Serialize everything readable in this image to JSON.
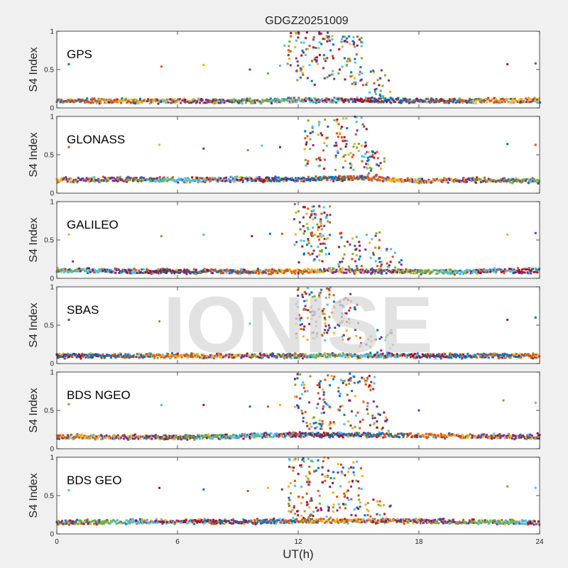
{
  "chart_data": {
    "type": "scatter",
    "title": "GDGZ20251009",
    "xlabel": "UT(h)",
    "ylabel": "S4 Index",
    "xlim": [
      0,
      24
    ],
    "ylim": [
      0,
      1
    ],
    "xticks": [
      "0",
      "6",
      "12",
      "18",
      "24"
    ],
    "yticks": [
      "0",
      "0.5",
      "1"
    ],
    "watermark": "IONISE",
    "series_colors": [
      "#0072BD",
      "#D95319",
      "#EDB120",
      "#7E2F8E",
      "#77AC30",
      "#4DBEEE",
      "#A2142F"
    ],
    "panels": [
      {
        "name": "GPS",
        "baseline": [
          [
            0,
            0.09
          ],
          [
            6,
            0.09
          ],
          [
            10,
            0.09
          ],
          [
            12,
            0.1
          ],
          [
            16,
            0.1
          ],
          [
            20,
            0.09
          ],
          [
            24,
            0.1
          ]
        ],
        "bursts": [
          {
            "x0": 11.3,
            "x1": 13.8,
            "ymin": 0.3,
            "ymax": 1.0,
            "n": 95
          },
          {
            "x0": 14.0,
            "x1": 15.2,
            "ymin": 0.3,
            "ymax": 0.95,
            "n": 55
          },
          {
            "x0": 15.2,
            "x1": 16.6,
            "ymin": 0.15,
            "ymax": 0.5,
            "n": 25
          }
        ],
        "outliers": [
          [
            0.6,
            0.57
          ],
          [
            5.2,
            0.54
          ],
          [
            7.3,
            0.56
          ],
          [
            9.6,
            0.5
          ],
          [
            10.5,
            0.45
          ],
          [
            11.1,
            0.55
          ],
          [
            22.4,
            0.57
          ],
          [
            23.8,
            0.58
          ]
        ]
      },
      {
        "name": "GLONASS",
        "baseline": [
          [
            0,
            0.17
          ],
          [
            3,
            0.18
          ],
          [
            6,
            0.17
          ],
          [
            9,
            0.18
          ],
          [
            12,
            0.18
          ],
          [
            15,
            0.2
          ],
          [
            18,
            0.16
          ],
          [
            21,
            0.17
          ],
          [
            24,
            0.16
          ]
        ],
        "bursts": [
          {
            "x0": 12.3,
            "x1": 13.5,
            "ymin": 0.3,
            "ymax": 1.0,
            "n": 40
          },
          {
            "x0": 13.8,
            "x1": 15.4,
            "ymin": 0.3,
            "ymax": 1.0,
            "n": 70
          },
          {
            "x0": 15.4,
            "x1": 16.3,
            "ymin": 0.2,
            "ymax": 0.55,
            "n": 30
          }
        ],
        "outliers": [
          [
            0.6,
            0.6
          ],
          [
            5.1,
            0.63
          ],
          [
            7.3,
            0.58
          ],
          [
            9.5,
            0.56
          ],
          [
            10.2,
            0.62
          ],
          [
            11.1,
            0.6
          ],
          [
            22.4,
            0.64
          ],
          [
            23.8,
            0.63
          ]
        ]
      },
      {
        "name": "GALILEO",
        "baseline": [
          [
            0,
            0.1
          ],
          [
            6,
            0.09
          ],
          [
            11,
            0.09
          ],
          [
            13,
            0.1
          ],
          [
            17,
            0.09
          ],
          [
            20,
            0.08
          ],
          [
            22,
            0.1
          ],
          [
            24,
            0.1
          ]
        ],
        "bursts": [
          {
            "x0": 11.8,
            "x1": 13.2,
            "ymin": 0.2,
            "ymax": 0.98,
            "n": 60
          },
          {
            "x0": 12.6,
            "x1": 13.6,
            "ymin": 0.3,
            "ymax": 0.95,
            "n": 45
          },
          {
            "x0": 14.0,
            "x1": 16.2,
            "ymin": 0.15,
            "ymax": 0.6,
            "n": 50
          },
          {
            "x0": 16.0,
            "x1": 17.2,
            "ymin": 0.08,
            "ymax": 0.4,
            "n": 20
          }
        ],
        "outliers": [
          [
            0.6,
            0.57
          ],
          [
            0.8,
            0.22
          ],
          [
            5.2,
            0.55
          ],
          [
            7.3,
            0.57
          ],
          [
            9.7,
            0.55
          ],
          [
            10.6,
            0.58
          ],
          [
            11.2,
            0.58
          ],
          [
            22.4,
            0.57
          ],
          [
            23.8,
            0.59
          ]
        ]
      },
      {
        "name": "SBAS",
        "baseline": [
          [
            0,
            0.1
          ],
          [
            6,
            0.1
          ],
          [
            12,
            0.1
          ],
          [
            16,
            0.1
          ],
          [
            20,
            0.1
          ],
          [
            24,
            0.1
          ]
        ],
        "bursts": [
          {
            "x0": 11.9,
            "x1": 13.6,
            "ymin": 0.3,
            "ymax": 1.0,
            "n": 90
          },
          {
            "x0": 13.6,
            "x1": 15.0,
            "ymin": 0.3,
            "ymax": 0.95,
            "n": 45
          },
          {
            "x0": 15.0,
            "x1": 16.8,
            "ymin": 0.1,
            "ymax": 0.45,
            "n": 30
          }
        ],
        "outliers": [
          [
            0.6,
            0.57
          ],
          [
            5.1,
            0.55
          ],
          [
            9.6,
            0.52
          ],
          [
            22.4,
            0.57
          ],
          [
            23.8,
            0.6
          ]
        ]
      },
      {
        "name": "BDS NGEO",
        "baseline": [
          [
            0,
            0.16
          ],
          [
            4,
            0.15
          ],
          [
            7,
            0.15
          ],
          [
            10,
            0.17
          ],
          [
            12,
            0.18
          ],
          [
            16,
            0.18
          ],
          [
            19,
            0.17
          ],
          [
            22,
            0.16
          ],
          [
            24,
            0.15
          ]
        ],
        "bursts": [
          {
            "x0": 11.8,
            "x1": 13.8,
            "ymin": 0.25,
            "ymax": 0.98,
            "n": 80
          },
          {
            "x0": 14.0,
            "x1": 15.8,
            "ymin": 0.25,
            "ymax": 0.98,
            "n": 70
          },
          {
            "x0": 15.8,
            "x1": 16.5,
            "ymin": 0.2,
            "ymax": 0.55,
            "n": 15
          }
        ],
        "outliers": [
          [
            0.6,
            0.58
          ],
          [
            5.2,
            0.57
          ],
          [
            7.3,
            0.57
          ],
          [
            9.6,
            0.55
          ],
          [
            10.5,
            0.55
          ],
          [
            11.1,
            0.57
          ],
          [
            18.0,
            0.5
          ],
          [
            22.2,
            0.63
          ],
          [
            23.8,
            0.6
          ],
          [
            23.9,
            0.2
          ]
        ]
      },
      {
        "name": "BDS GEO",
        "baseline": [
          [
            0,
            0.15
          ],
          [
            4,
            0.16
          ],
          [
            8,
            0.16
          ],
          [
            10,
            0.16
          ],
          [
            12,
            0.17
          ],
          [
            16,
            0.17
          ],
          [
            20,
            0.16
          ],
          [
            24,
            0.15
          ]
        ],
        "bursts": [
          {
            "x0": 11.5,
            "x1": 13.6,
            "ymin": 0.2,
            "ymax": 1.0,
            "n": 100
          },
          {
            "x0": 13.6,
            "x1": 15.2,
            "ymin": 0.2,
            "ymax": 0.95,
            "n": 60
          },
          {
            "x0": 15.2,
            "x1": 16.8,
            "ymin": 0.15,
            "ymax": 0.45,
            "n": 25
          }
        ],
        "outliers": [
          [
            0.6,
            0.57
          ],
          [
            5.1,
            0.6
          ],
          [
            7.3,
            0.58
          ],
          [
            9.5,
            0.56
          ],
          [
            10.5,
            0.6
          ],
          [
            11.2,
            0.58
          ],
          [
            22.4,
            0.62
          ],
          [
            23.8,
            0.6
          ]
        ]
      }
    ]
  }
}
